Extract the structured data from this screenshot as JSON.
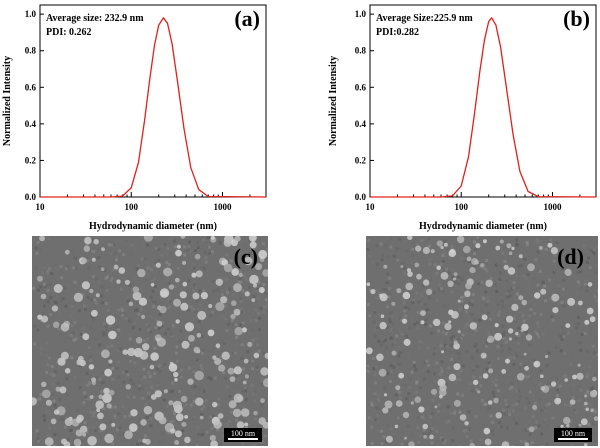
{
  "chart_data": [
    {
      "type": "line",
      "panel_label": "(a)",
      "annotation_line1": "Average size: 232.9 nm",
      "annotation_line2": "PDI: 0.262",
      "xlabel": "Hydrodynamic diameter (nm)",
      "ylabel": "Normalized Intensity",
      "xscale": "log",
      "xlim": [
        10,
        3000
      ],
      "ylim": [
        0,
        1.05
      ],
      "xticks": [
        "10",
        "100",
        "1000"
      ],
      "yticks": [
        "0.0",
        "0.2",
        "0.4",
        "0.6",
        "0.8",
        "1.0"
      ],
      "series": [
        {
          "color": "#e0201c",
          "peak_x": 225,
          "peak_y": 0.98,
          "x": [
            10,
            60,
            80,
            100,
            120,
            140,
            160,
            180,
            200,
            225,
            250,
            280,
            320,
            380,
            450,
            550,
            700,
            3000
          ],
          "y": [
            0.0,
            0.0,
            0.005,
            0.05,
            0.19,
            0.42,
            0.65,
            0.83,
            0.94,
            0.98,
            0.95,
            0.84,
            0.64,
            0.37,
            0.16,
            0.04,
            0.003,
            0.0
          ]
        }
      ]
    },
    {
      "type": "line",
      "panel_label": "(b)",
      "annotation_line1": "Average Size:225.9 nm",
      "annotation_line2": "PDI:0.282",
      "xlabel": "Hydrodynamic diameter (nm)",
      "ylabel": "Normalized Intensity",
      "xscale": "log",
      "xlim": [
        10,
        3000
      ],
      "ylim": [
        0,
        1.05
      ],
      "xticks": [
        "10",
        "100",
        "1000"
      ],
      "yticks": [
        "0.0",
        "0.2",
        "0.4",
        "0.6",
        "0.8",
        "1.0"
      ],
      "series": [
        {
          "color": "#e0201c",
          "peak_x": 215,
          "peak_y": 0.98,
          "x": [
            10,
            60,
            80,
            100,
            120,
            140,
            160,
            180,
            200,
            215,
            240,
            270,
            310,
            370,
            440,
            540,
            700,
            3000
          ],
          "y": [
            0.0,
            0.0,
            0.006,
            0.06,
            0.22,
            0.46,
            0.69,
            0.86,
            0.96,
            0.98,
            0.94,
            0.82,
            0.61,
            0.34,
            0.14,
            0.03,
            0.002,
            0.0
          ]
        }
      ]
    }
  ],
  "images": {
    "c": {
      "panel_label": "(c)",
      "scale_label": "100 nm"
    },
    "d": {
      "panel_label": "(d)",
      "scale_label": "100 nm"
    }
  }
}
